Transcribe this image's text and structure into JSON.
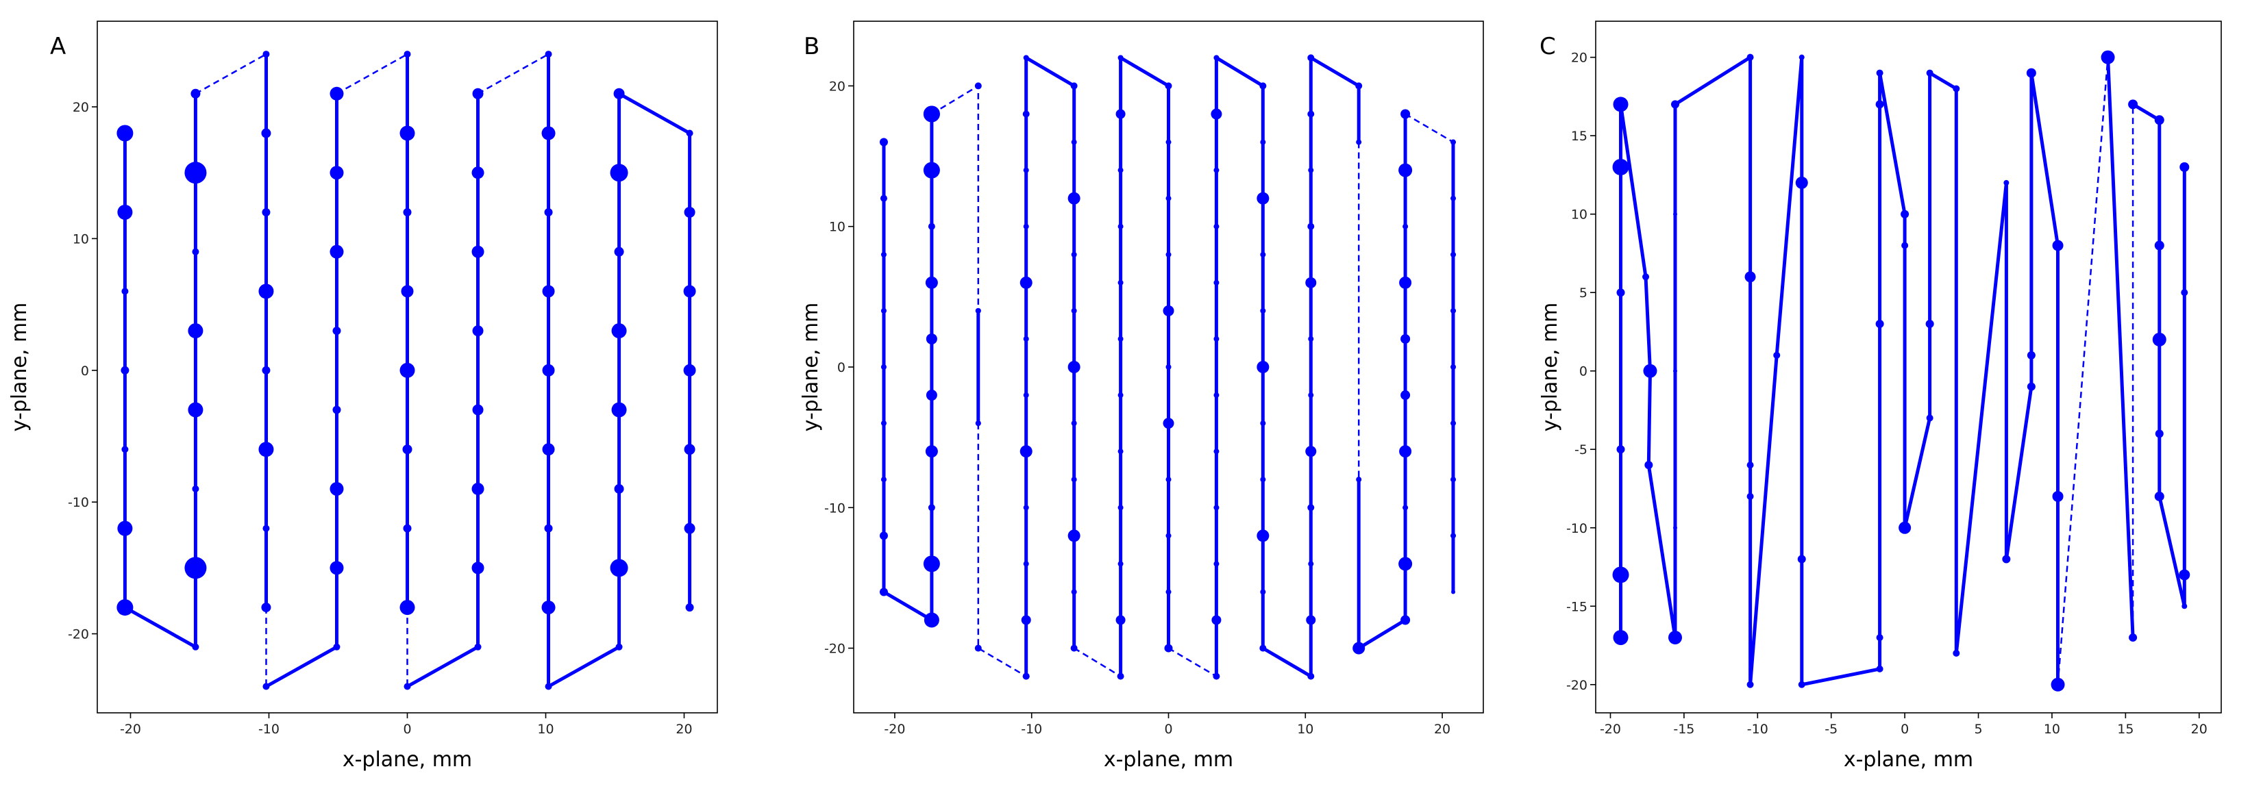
{
  "chart_data": [
    {
      "type": "line",
      "label": "A",
      "xlabel": "x-plane, mm",
      "ylabel": "y-plane, mm",
      "color": "#0000ff",
      "xlim": [
        -22.4,
        22.4
      ],
      "ylim": [
        -26,
        26.5
      ],
      "xticks": [
        -20,
        -10,
        0,
        10,
        20
      ],
      "yticks": [
        -20,
        -10,
        0,
        10,
        20
      ],
      "series": [
        {
          "dashed": false,
          "x": [
            -20.4,
            -20.4,
            -20.4,
            -20.4,
            -20.4,
            -20.4,
            -20.4,
            -15.3,
            -15.3,
            -15.3,
            -15.3,
            -15.3,
            -15.3,
            -15.3,
            -15.3
          ],
          "y": [
            18,
            12,
            6,
            0,
            -6,
            -12,
            -18,
            -21,
            -15,
            -9,
            -3,
            3,
            9,
            15,
            21
          ],
          "sizes": [
            24,
            22,
            10,
            12,
            10,
            22,
            24,
            10,
            32,
            10,
            22,
            22,
            10,
            32,
            14
          ]
        },
        {
          "dashed": true,
          "x": [
            -15.3,
            -10.2
          ],
          "y": [
            21,
            24
          ]
        },
        {
          "dashed": false,
          "x": [
            -10.2,
            -10.2,
            -10.2,
            -10.2,
            -10.2,
            -10.2,
            -10.2,
            -10.2
          ],
          "y": [
            24,
            18,
            12,
            6,
            0,
            -6,
            -12,
            -18
          ],
          "sizes": [
            10,
            14,
            12,
            22,
            12,
            22,
            10,
            14
          ]
        },
        {
          "dashed": true,
          "x": [
            -10.2,
            -10.2
          ],
          "y": [
            -18,
            -24
          ]
        },
        {
          "dashed": false,
          "x": [
            -10.2,
            -5.1,
            -5.1,
            -5.1,
            -5.1,
            -5.1,
            -5.1,
            -5.1,
            -5.1
          ],
          "y": [
            -24,
            -21,
            -15,
            -9,
            -3,
            3,
            9,
            15,
            21
          ],
          "sizes": [
            10,
            10,
            20,
            20,
            12,
            12,
            20,
            20,
            20
          ]
        },
        {
          "dashed": true,
          "x": [
            -5.1,
            0
          ],
          "y": [
            21,
            24
          ]
        },
        {
          "dashed": false,
          "x": [
            0,
            0,
            0,
            0,
            0,
            0,
            0,
            0
          ],
          "y": [
            24,
            18,
            12,
            6,
            0,
            -6,
            -12,
            -18
          ],
          "sizes": [
            10,
            22,
            12,
            18,
            22,
            14,
            12,
            22
          ]
        },
        {
          "dashed": true,
          "x": [
            0,
            0
          ],
          "y": [
            -18,
            -24
          ]
        },
        {
          "dashed": false,
          "x": [
            0,
            5.1,
            5.1,
            5.1,
            5.1,
            5.1,
            5.1,
            5.1,
            5.1
          ],
          "y": [
            -24,
            -21,
            -15,
            -9,
            -3,
            3,
            9,
            15,
            21
          ],
          "sizes": [
            10,
            10,
            18,
            18,
            16,
            16,
            18,
            18,
            16
          ]
        },
        {
          "dashed": true,
          "x": [
            5.1,
            10.2
          ],
          "y": [
            21,
            24
          ]
        },
        {
          "dashed": false,
          "x": [
            10.2,
            10.2,
            10.2,
            10.2,
            10.2,
            10.2,
            10.2,
            10.2,
            10.2,
            15.3,
            15.3,
            15.3,
            15.3,
            15.3,
            15.3,
            15.3,
            15.3,
            20.4,
            20.4,
            20.4,
            20.4,
            20.4,
            20.4,
            20.4
          ],
          "y": [
            24,
            18,
            12,
            6,
            0,
            -6,
            -12,
            -18,
            -24,
            -21,
            -15,
            -9,
            -3,
            3,
            9,
            15,
            21,
            18,
            12,
            6,
            0,
            -6,
            -12,
            -18
          ],
          "sizes": [
            10,
            20,
            12,
            18,
            18,
            18,
            12,
            20,
            10,
            10,
            26,
            14,
            22,
            22,
            14,
            26,
            16,
            10,
            16,
            18,
            18,
            16,
            16,
            12
          ]
        }
      ]
    },
    {
      "type": "line",
      "label": "B",
      "xlabel": "x-plane, mm",
      "ylabel": "y-plane, mm",
      "color": "#0000ff",
      "xlim": [
        -23,
        23
      ],
      "ylim": [
        -24.6,
        24.6
      ],
      "xticks": [
        -20,
        -10,
        0,
        10,
        20
      ],
      "yticks": [
        -20,
        -10,
        0,
        10,
        20
      ],
      "series": [
        {
          "dashed": false,
          "x": [
            -20.8,
            -20.8,
            -20.8,
            -20.8,
            -20.8,
            -20.8,
            -20.8,
            -20.8,
            -20.8,
            -17.3,
            -17.3,
            -17.3,
            -17.3,
            -17.3,
            -17.3,
            -17.3,
            -17.3,
            -17.3,
            -17.3
          ],
          "y": [
            16,
            12,
            8,
            4,
            0,
            -4,
            -8,
            -12,
            -16,
            -18,
            -14,
            -10,
            -6,
            -2,
            2,
            6,
            10,
            14,
            18
          ],
          "sizes": [
            12,
            10,
            8,
            8,
            8,
            8,
            8,
            12,
            12,
            22,
            24,
            10,
            18,
            16,
            16,
            18,
            10,
            24,
            24
          ]
        },
        {
          "dashed": true,
          "x": [
            -17.3,
            -13.9,
            -13.9
          ],
          "y": [
            18,
            20,
            4
          ],
          "sizes": [
            24,
            10,
            8
          ]
        },
        {
          "dashed": false,
          "x": [
            -13.9,
            -13.9
          ],
          "y": [
            4,
            -4
          ],
          "sizes": [
            8,
            8
          ]
        },
        {
          "dashed": true,
          "x": [
            -13.9,
            -13.9,
            -10.4
          ],
          "y": [
            -4,
            -20,
            -22
          ],
          "sizes": [
            8,
            10,
            10
          ]
        },
        {
          "dashed": false,
          "x": [
            -10.4,
            -10.4,
            -10.4,
            -10.4,
            -10.4,
            -10.4,
            -10.4,
            -10.4,
            -10.4,
            -10.4,
            -10.4,
            -10.4,
            -6.9,
            -6.9,
            -6.9,
            -6.9,
            -6.9,
            -6.9,
            -6.9,
            -6.9,
            -6.9,
            -6.9,
            -6.9
          ],
          "y": [
            -22,
            -18,
            -14,
            -10,
            -6,
            -2,
            2,
            6,
            10,
            14,
            18,
            22,
            20,
            16,
            12,
            8,
            4,
            0,
            -4,
            -8,
            -12,
            -16,
            -20
          ],
          "sizes": [
            10,
            14,
            8,
            8,
            18,
            8,
            8,
            18,
            8,
            8,
            10,
            8,
            10,
            8,
            18,
            8,
            8,
            18,
            8,
            8,
            18,
            8,
            10
          ]
        },
        {
          "dashed": true,
          "x": [
            -6.9,
            -3.5
          ],
          "y": [
            -20,
            -22
          ]
        },
        {
          "dashed": false,
          "x": [
            -3.5,
            -3.5,
            -3.5,
            -3.5,
            -3.5,
            -3.5,
            -3.5,
            -3.5,
            -3.5,
            -3.5,
            -3.5,
            -3.5,
            0,
            0,
            0,
            0,
            0,
            0,
            0,
            0,
            0,
            0,
            0
          ],
          "y": [
            -22,
            -18,
            -14,
            -10,
            -6,
            -2,
            2,
            6,
            10,
            14,
            18,
            22,
            20,
            16,
            12,
            8,
            4,
            0,
            -4,
            -8,
            -12,
            -16,
            -20
          ],
          "sizes": [
            10,
            14,
            8,
            8,
            8,
            8,
            8,
            8,
            8,
            8,
            14,
            8,
            10,
            8,
            8,
            8,
            16,
            8,
            16,
            8,
            8,
            8,
            12
          ]
        },
        {
          "dashed": true,
          "x": [
            0,
            3.5
          ],
          "y": [
            -20,
            -22
          ]
        },
        {
          "dashed": false,
          "x": [
            3.5,
            3.5,
            3.5,
            3.5,
            3.5,
            3.5,
            3.5,
            3.5,
            3.5,
            3.5,
            3.5,
            3.5,
            6.9,
            6.9,
            6.9,
            6.9,
            6.9,
            6.9,
            6.9,
            6.9,
            6.9,
            6.9,
            6.9,
            10.4,
            10.4,
            10.4,
            10.4,
            10.4,
            10.4,
            10.4,
            10.4,
            10.4,
            10.4,
            10.4,
            10.4,
            13.9,
            13.9
          ],
          "y": [
            -22,
            -18,
            -14,
            -10,
            -6,
            -2,
            2,
            6,
            10,
            14,
            18,
            22,
            20,
            16,
            12,
            8,
            4,
            0,
            -4,
            -8,
            -12,
            -16,
            -20,
            -22,
            -18,
            -14,
            -10,
            -6,
            -2,
            2,
            6,
            10,
            14,
            18,
            22,
            20,
            16
          ],
          "sizes": [
            10,
            14,
            8,
            8,
            8,
            8,
            8,
            8,
            8,
            8,
            16,
            8,
            10,
            8,
            18,
            8,
            8,
            18,
            8,
            8,
            18,
            8,
            10,
            10,
            14,
            8,
            10,
            16,
            8,
            8,
            16,
            10,
            8,
            10,
            10,
            10,
            8
          ]
        },
        {
          "dashed": true,
          "x": [
            13.9,
            13.9
          ],
          "y": [
            16,
            -8
          ]
        },
        {
          "dashed": false,
          "x": [
            13.9,
            13.9,
            17.3,
            17.3,
            17.3,
            17.3,
            17.3,
            17.3,
            17.3,
            17.3,
            17.3,
            17.3
          ],
          "y": [
            -8,
            -20,
            -18,
            -14,
            -10,
            -6,
            -2,
            2,
            6,
            10,
            14,
            18
          ],
          "sizes": [
            8,
            18,
            14,
            20,
            8,
            18,
            14,
            14,
            18,
            8,
            20,
            14
          ]
        },
        {
          "dashed": true,
          "x": [
            17.3,
            20.8
          ],
          "y": [
            18,
            16
          ]
        },
        {
          "dashed": false,
          "x": [
            20.8,
            20.8,
            20.8,
            20.8,
            20.8,
            20.8,
            20.8,
            20.8,
            20.8
          ],
          "y": [
            16,
            12,
            8,
            4,
            0,
            -4,
            -8,
            -12,
            -16
          ],
          "sizes": [
            8,
            8,
            8,
            8,
            8,
            8,
            8,
            8,
            6
          ]
        }
      ]
    },
    {
      "type": "line",
      "label": "C",
      "xlabel": "x-plane, mm",
      "ylabel": "y-plane, mm",
      "color": "#0000ff",
      "xlim": [
        -21,
        21.5
      ],
      "ylim": [
        -21.8,
        22.3
      ],
      "xticks": [
        -20,
        -15,
        -10,
        -5,
        0,
        5,
        10,
        15,
        20
      ],
      "yticks": [
        -20,
        -15,
        -10,
        -5,
        0,
        5,
        10,
        15,
        20
      ],
      "series": [
        {
          "dashed": false,
          "x": [
            -19.3,
            -19.3,
            -19.3,
            -19.3,
            -19.3,
            -19.3,
            -17.6,
            -17.3,
            -17.4,
            -15.6,
            -15.6,
            -15.6,
            -15.6,
            -15.6,
            -10.5,
            -10.5,
            -10.5,
            -10.5,
            -10.5,
            -8.7,
            -7,
            -7,
            -7,
            -7,
            -1.7,
            -1.7,
            -1.7,
            -1.7,
            -1.7,
            0,
            0,
            0,
            1.7,
            1.7,
            1.7,
            3.5,
            3.5,
            6.9,
            6.9,
            8.6,
            8.6,
            8.6,
            10.4,
            10.4,
            10.4
          ],
          "y": [
            -17,
            -13,
            -5,
            5,
            13,
            17,
            6,
            0,
            -6,
            -17,
            -10,
            0,
            10,
            17,
            20,
            6,
            -6,
            -8,
            -20,
            1,
            20,
            12,
            -12,
            -20,
            -19,
            -17,
            3,
            17,
            19,
            10,
            8,
            -10,
            -3,
            3,
            19,
            18,
            -18,
            12,
            -12,
            -1,
            1,
            19,
            8,
            -8,
            -20
          ],
          "sizes": [
            22,
            24,
            12,
            12,
            24,
            22,
            10,
            20,
            12,
            20,
            6,
            6,
            6,
            12,
            10,
            16,
            10,
            10,
            10,
            10,
            8,
            18,
            12,
            10,
            10,
            10,
            12,
            12,
            10,
            12,
            10,
            18,
            10,
            12,
            10,
            10,
            10,
            8,
            12,
            12,
            12,
            14,
            16,
            16,
            20
          ]
        },
        {
          "dashed": true,
          "x": [
            10.4,
            13.8
          ],
          "y": [
            -20,
            20
          ]
        },
        {
          "dashed": false,
          "x": [
            13.8,
            15.5
          ],
          "y": [
            20,
            -17
          ],
          "sizes": [
            20,
            12
          ]
        },
        {
          "dashed": true,
          "x": [
            15.5,
            15.5
          ],
          "y": [
            -17,
            17
          ]
        },
        {
          "dashed": false,
          "x": [
            15.5,
            17.3,
            17.3,
            17.3,
            17.3,
            17.3,
            19,
            19,
            19,
            19
          ],
          "y": [
            17,
            16,
            8,
            2,
            -4,
            -8,
            -15,
            -13,
            5,
            13
          ],
          "sizes": [
            14,
            14,
            14,
            20,
            12,
            14,
            8,
            16,
            10,
            14
          ]
        }
      ]
    }
  ]
}
